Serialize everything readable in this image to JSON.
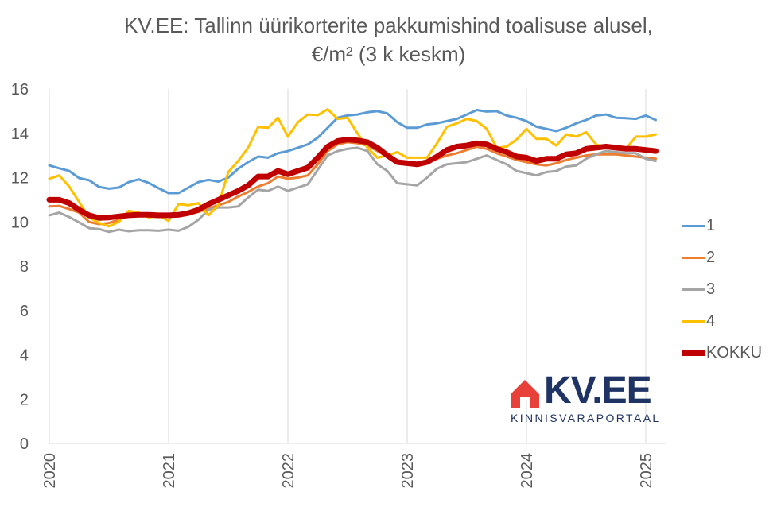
{
  "chart_data": {
    "type": "line",
    "title": "KV.EE: Tallinn üürikorterite pakkumishind toalisuse alusel,",
    "subtitle": "€/m² (3 k keskm)",
    "xlabel": "",
    "ylabel": "",
    "ylim": [
      0,
      16
    ],
    "yticks": [
      0,
      2,
      4,
      6,
      8,
      10,
      12,
      14,
      16
    ],
    "x_tick_labels": [
      "2020",
      "2021",
      "2022",
      "2023",
      "2024",
      "2025"
    ],
    "x_range": [
      "2020-01",
      "2025-02"
    ],
    "grid": "vertical at years",
    "legend_position": "right",
    "x": [
      "2020-01",
      "2020-02",
      "2020-03",
      "2020-04",
      "2020-05",
      "2020-06",
      "2020-07",
      "2020-08",
      "2020-09",
      "2020-10",
      "2020-11",
      "2020-12",
      "2021-01",
      "2021-02",
      "2021-03",
      "2021-04",
      "2021-05",
      "2021-06",
      "2021-07",
      "2021-08",
      "2021-09",
      "2021-10",
      "2021-11",
      "2021-12",
      "2022-01",
      "2022-02",
      "2022-03",
      "2022-04",
      "2022-05",
      "2022-06",
      "2022-07",
      "2022-08",
      "2022-09",
      "2022-10",
      "2022-11",
      "2022-12",
      "2023-01",
      "2023-02",
      "2023-03",
      "2023-04",
      "2023-05",
      "2023-06",
      "2023-07",
      "2023-08",
      "2023-09",
      "2023-10",
      "2023-11",
      "2023-12",
      "2024-01",
      "2024-02",
      "2024-03",
      "2024-04",
      "2024-05",
      "2024-06",
      "2024-07",
      "2024-08",
      "2024-09",
      "2024-10",
      "2024-11",
      "2024-12",
      "2025-01",
      "2025-02"
    ],
    "series": [
      {
        "name": "1",
        "color": "#5b9bd5",
        "width": 3,
        "values": [
          12.55,
          12.42,
          12.3,
          11.98,
          11.88,
          11.58,
          11.5,
          11.55,
          11.8,
          11.92,
          11.76,
          11.52,
          11.3,
          11.3,
          11.55,
          11.8,
          11.9,
          11.82,
          12.0,
          12.4,
          12.7,
          12.95,
          12.9,
          13.1,
          13.2,
          13.35,
          13.5,
          13.8,
          14.25,
          14.7,
          14.8,
          14.85,
          14.95,
          15.0,
          14.9,
          14.5,
          14.25,
          14.25,
          14.4,
          14.45,
          14.55,
          14.65,
          14.85,
          15.05,
          14.98,
          15.0,
          14.8,
          14.7,
          14.55,
          14.3,
          14.2,
          14.1,
          14.25,
          14.45,
          14.6,
          14.8,
          14.85,
          14.7,
          14.68,
          14.65,
          14.8,
          14.6
        ]
      },
      {
        "name": "2",
        "color": "#ed7d31",
        "width": 3,
        "values": [
          10.7,
          10.72,
          10.58,
          10.42,
          10.0,
          9.9,
          9.95,
          10.1,
          10.3,
          10.32,
          10.25,
          10.22,
          10.25,
          10.25,
          10.35,
          10.45,
          10.6,
          10.75,
          10.9,
          11.15,
          11.35,
          11.6,
          11.75,
          12.05,
          11.95,
          12.0,
          12.1,
          12.6,
          13.2,
          13.5,
          13.6,
          13.55,
          13.45,
          13.2,
          12.95,
          12.7,
          12.6,
          12.6,
          12.7,
          12.85,
          13.0,
          13.1,
          13.25,
          13.4,
          13.3,
          13.1,
          12.95,
          12.8,
          12.7,
          12.6,
          12.55,
          12.65,
          12.8,
          12.9,
          13.0,
          13.05,
          13.05,
          13.05,
          13.0,
          12.95,
          12.9,
          12.85
        ]
      },
      {
        "name": "3",
        "color": "#a5a5a5",
        "width": 3,
        "values": [
          10.3,
          10.42,
          10.22,
          9.98,
          9.72,
          9.68,
          9.55,
          9.65,
          9.58,
          9.62,
          9.62,
          9.6,
          9.65,
          9.6,
          9.78,
          10.1,
          10.55,
          10.65,
          10.65,
          10.7,
          11.1,
          11.45,
          11.4,
          11.6,
          11.4,
          11.55,
          11.7,
          12.35,
          13.0,
          13.2,
          13.3,
          13.35,
          13.2,
          12.6,
          12.3,
          11.75,
          11.7,
          11.65,
          12.0,
          12.4,
          12.6,
          12.65,
          12.7,
          12.85,
          13.0,
          12.8,
          12.6,
          12.3,
          12.2,
          12.1,
          12.25,
          12.3,
          12.5,
          12.55,
          12.85,
          13.05,
          13.2,
          13.15,
          13.1,
          13.1,
          12.85,
          12.75
        ]
      },
      {
        "name": "4",
        "color": "#ffc000",
        "width": 3,
        "values": [
          11.95,
          12.1,
          11.6,
          10.9,
          10.2,
          9.95,
          9.8,
          10.0,
          10.5,
          10.42,
          10.2,
          10.3,
          10.05,
          10.8,
          10.75,
          10.85,
          10.3,
          10.75,
          12.25,
          12.75,
          13.35,
          14.28,
          14.25,
          14.7,
          13.85,
          14.5,
          14.85,
          14.82,
          15.08,
          14.65,
          14.7,
          14.0,
          13.35,
          12.9,
          13.0,
          13.15,
          12.9,
          12.9,
          12.9,
          13.55,
          14.3,
          14.45,
          14.65,
          14.55,
          14.2,
          13.35,
          13.4,
          13.72,
          14.2,
          13.75,
          13.75,
          13.45,
          13.95,
          13.85,
          14.05,
          13.5,
          13.35,
          13.35,
          13.3,
          13.85,
          13.85,
          13.95
        ]
      },
      {
        "name": "KOKKU",
        "color": "#c00000",
        "width": 7,
        "values": [
          11.0,
          11.0,
          10.85,
          10.55,
          10.3,
          10.18,
          10.2,
          10.25,
          10.3,
          10.32,
          10.32,
          10.3,
          10.3,
          10.32,
          10.4,
          10.55,
          10.8,
          11.0,
          11.2,
          11.4,
          11.65,
          12.05,
          12.05,
          12.3,
          12.15,
          12.3,
          12.45,
          12.9,
          13.4,
          13.65,
          13.72,
          13.68,
          13.6,
          13.35,
          13.0,
          12.7,
          12.65,
          12.6,
          12.7,
          12.95,
          13.25,
          13.4,
          13.45,
          13.55,
          13.5,
          13.3,
          13.15,
          12.95,
          12.9,
          12.75,
          12.85,
          12.85,
          13.05,
          13.1,
          13.3,
          13.35,
          13.4,
          13.35,
          13.3,
          13.3,
          13.25,
          13.2
        ]
      }
    ]
  },
  "logo": {
    "text": "KV.EE",
    "subtext": "KINNISVARAPORTAAL",
    "color": "#1f3464",
    "accent": "#e8413a"
  }
}
